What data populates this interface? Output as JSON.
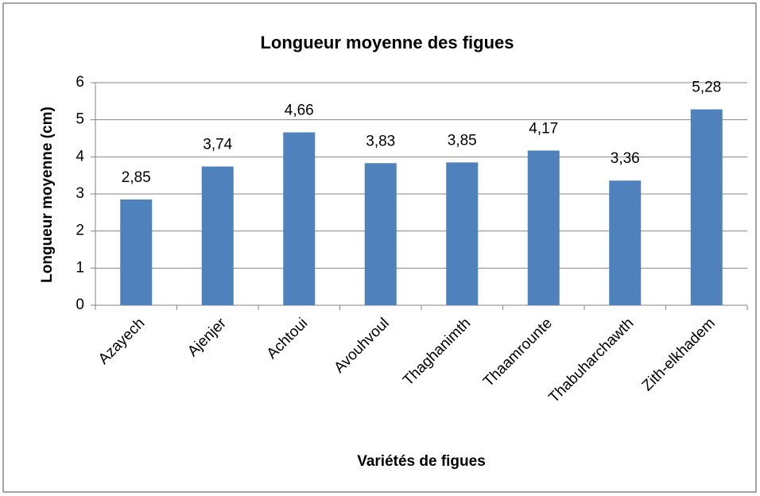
{
  "chart_data": {
    "type": "bar",
    "title": "Longueur moyenne des figues",
    "x_label": "Variétés de figues",
    "y_label": "Longueur moyenne (cm)",
    "categories": [
      "Azayech",
      "Ajenjer",
      "Achtoui",
      "Avouhvoul",
      "Thaghanimth",
      "Thaamrounte",
      "Thabuharchawth",
      "Zith-elkhadem"
    ],
    "values": [
      2.85,
      3.74,
      4.66,
      3.83,
      3.85,
      4.17,
      3.36,
      5.28
    ],
    "value_labels": [
      "2,85",
      "3,74",
      "4,66",
      "3,83",
      "3,85",
      "4,17",
      "3,36",
      "5,28"
    ],
    "color": "#4f81bd",
    "ylim": [
      0,
      6
    ],
    "yticks": [
      0,
      1,
      2,
      3,
      4,
      5,
      6
    ],
    "grid": true
  }
}
